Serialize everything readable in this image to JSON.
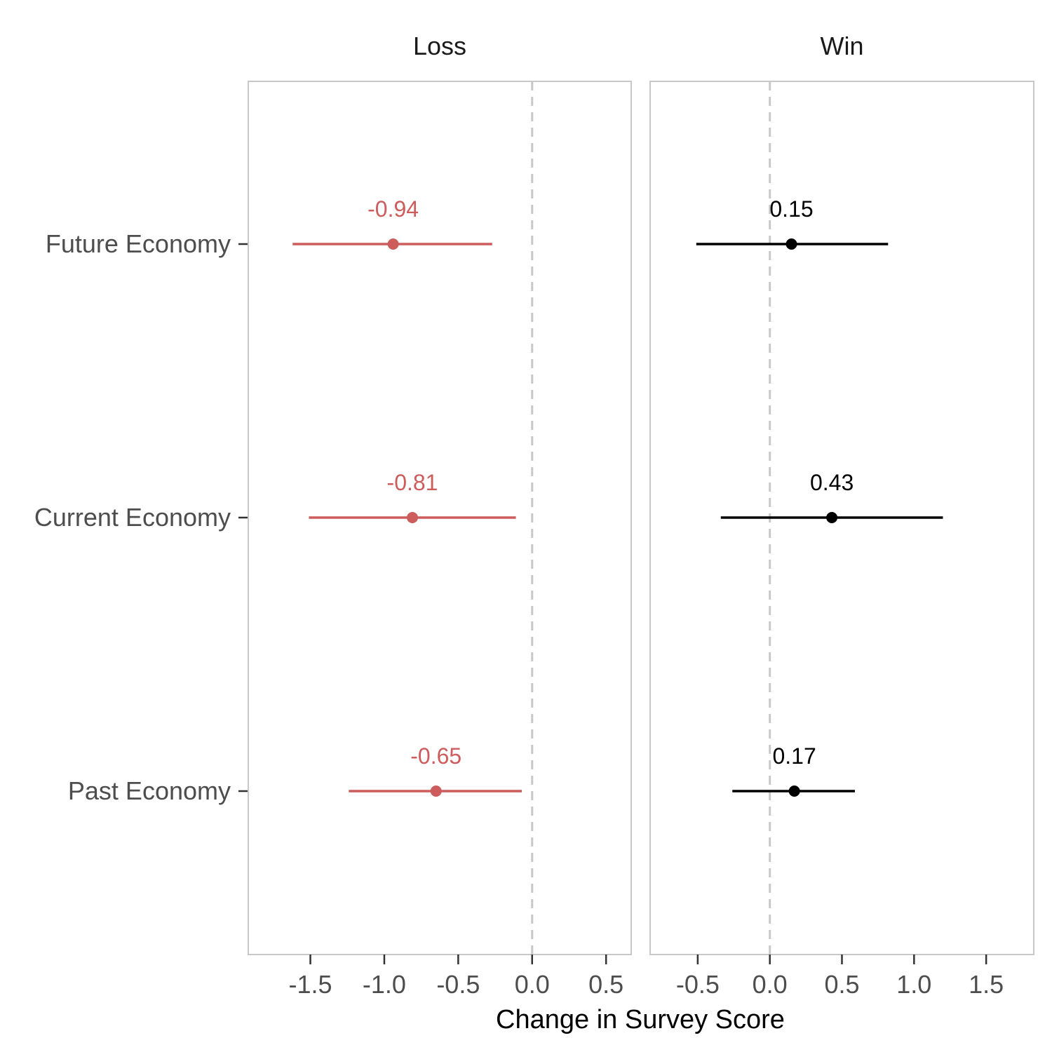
{
  "chart_data": {
    "type": "forest",
    "xlabel": "Change in Survey Score",
    "categories": [
      "Future Economy",
      "Current Economy",
      "Past Economy"
    ],
    "grid": false,
    "reference_line": {
      "x": 0,
      "style": "dashed",
      "color": "#c8c8c8"
    },
    "panels": [
      {
        "title": "Loss",
        "color": "#cd5c5c",
        "xlim": [
          -1.92,
          0.67
        ],
        "xticks": [
          "-1.5",
          "-1.0",
          "-0.5",
          "0.0",
          "0.5"
        ],
        "points": [
          {
            "category": "Future Economy",
            "estimate": -0.94,
            "lower": -1.62,
            "upper": -0.27,
            "label": "-0.94"
          },
          {
            "category": "Current Economy",
            "estimate": -0.81,
            "lower": -1.51,
            "upper": -0.11,
            "label": "-0.81"
          },
          {
            "category": "Past Economy",
            "estimate": -0.65,
            "lower": -1.24,
            "upper": -0.07,
            "label": "-0.65"
          }
        ]
      },
      {
        "title": "Win",
        "color": "#000000",
        "xlim": [
          -0.83,
          1.83
        ],
        "xticks": [
          "-0.5",
          "0.0",
          "0.5",
          "1.0",
          "1.5"
        ],
        "points": [
          {
            "category": "Future Economy",
            "estimate": 0.15,
            "lower": -0.51,
            "upper": 0.82,
            "label": "0.15"
          },
          {
            "category": "Current Economy",
            "estimate": 0.43,
            "lower": -0.34,
            "upper": 1.2,
            "label": "0.43"
          },
          {
            "category": "Past Economy",
            "estimate": 0.17,
            "lower": -0.26,
            "upper": 0.59,
            "label": "0.17"
          }
        ]
      }
    ]
  }
}
